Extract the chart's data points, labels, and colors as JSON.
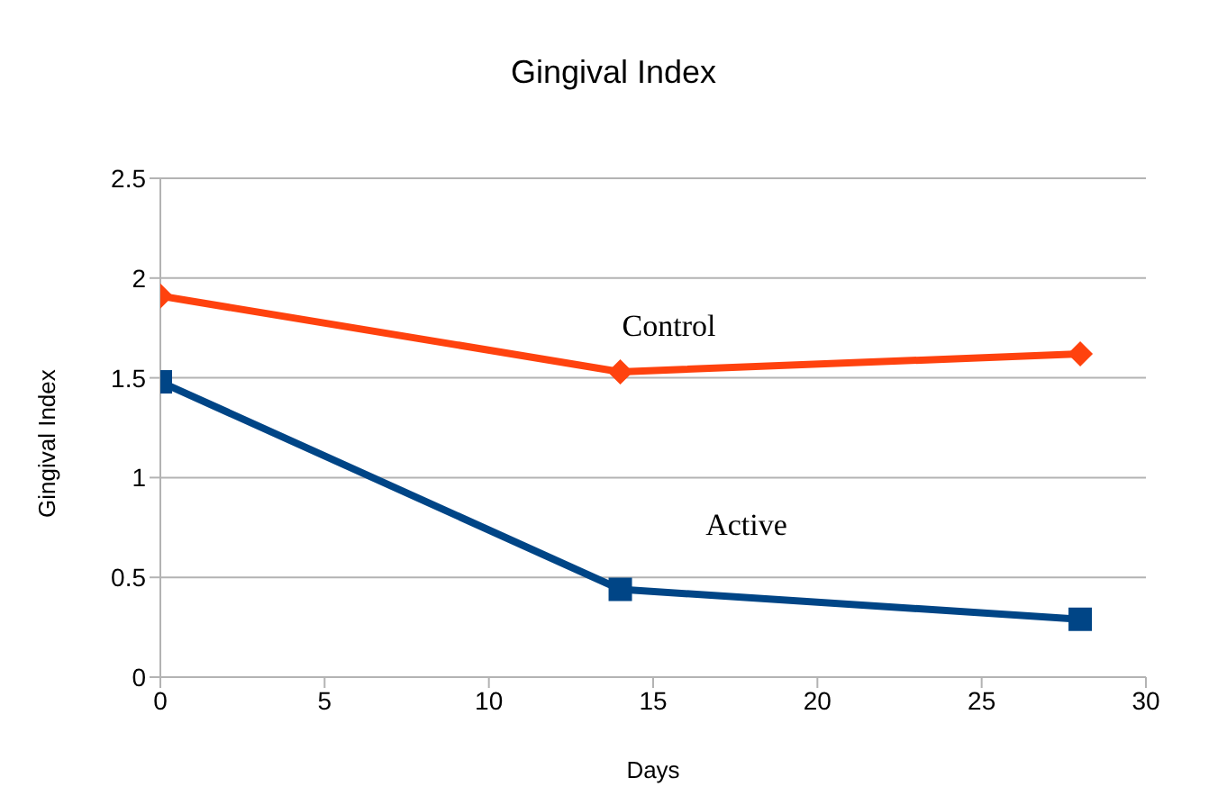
{
  "chart_data": {
    "type": "line",
    "title": "Gingival Index",
    "xlabel": "Days",
    "ylabel": "Gingival Index",
    "x": [
      0,
      14,
      28
    ],
    "series": [
      {
        "name": "Control",
        "color": "#ff420e",
        "values": [
          1.91,
          1.53,
          1.62
        ],
        "marker": "diamond"
      },
      {
        "name": "Active",
        "color": "#004586",
        "values": [
          1.48,
          0.44,
          0.29
        ],
        "marker": "square"
      }
    ],
    "xlim": [
      0,
      30
    ],
    "xticks": [
      0,
      5,
      10,
      15,
      20,
      25,
      30
    ],
    "ylim": [
      0,
      2.5
    ],
    "yticks": [
      0,
      0.5,
      1,
      1.5,
      2,
      2.5
    ],
    "grid": "y",
    "legend": false
  }
}
